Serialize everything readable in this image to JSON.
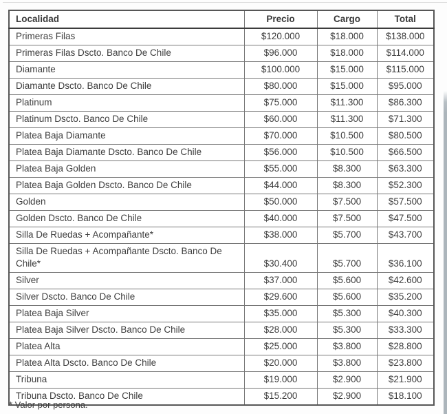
{
  "table": {
    "headers": [
      "Localidad",
      "Precio",
      "Cargo",
      "Total"
    ],
    "rows": [
      {
        "localidad": "Primeras Filas",
        "precio": "$120.000",
        "cargo": "$18.000",
        "total": "$138.000"
      },
      {
        "localidad": "Primeras Filas Dscto. Banco De Chile",
        "precio": "$96.000",
        "cargo": "$18.000",
        "total": "$114.000"
      },
      {
        "localidad": "Diamante",
        "precio": "$100.000",
        "cargo": "$15.000",
        "total": "$115.000"
      },
      {
        "localidad": "Diamante Dscto. Banco De Chile",
        "precio": "$80.000",
        "cargo": "$15.000",
        "total": "$95.000"
      },
      {
        "localidad": "Platinum",
        "precio": "$75.000",
        "cargo": "$11.300",
        "total": "$86.300"
      },
      {
        "localidad": "Platinum Dscto. Banco De Chile",
        "precio": "$60.000",
        "cargo": "$11.300",
        "total": "$71.300"
      },
      {
        "localidad": "Platea Baja Diamante",
        "precio": "$70.000",
        "cargo": "$10.500",
        "total": "$80.500"
      },
      {
        "localidad": "Platea Baja Diamante Dscto. Banco De Chile",
        "precio": "$56.000",
        "cargo": "$10.500",
        "total": "$66.500"
      },
      {
        "localidad": "Platea Baja Golden",
        "precio": "$55.000",
        "cargo": "$8.300",
        "total": "$63.300"
      },
      {
        "localidad": "Platea Baja Golden Dscto. Banco De Chile",
        "precio": "$44.000",
        "cargo": "$8.300",
        "total": "$52.300"
      },
      {
        "localidad": "Golden",
        "precio": "$50.000",
        "cargo": "$7.500",
        "total": "$57.500"
      },
      {
        "localidad": "Golden Dscto. Banco De Chile",
        "precio": "$40.000",
        "cargo": "$7.500",
        "total": "$47.500"
      },
      {
        "localidad": "Silla De Ruedas + Acompañante*",
        "precio": "$38.000",
        "cargo": "$5.700",
        "total": "$43.700"
      },
      {
        "localidad": "Silla De Ruedas + Acompañante Dscto. Banco De Chile*",
        "precio": "$30.400",
        "cargo": "$5.700",
        "total": "$36.100"
      },
      {
        "localidad": "Silver",
        "precio": "$37.000",
        "cargo": "$5.600",
        "total": "$42.600"
      },
      {
        "localidad": "Silver Dscto. Banco De Chile",
        "precio": "$29.600",
        "cargo": "$5.600",
        "total": "$35.200"
      },
      {
        "localidad": "Platea Baja Silver",
        "precio": "$35.000",
        "cargo": "$5.300",
        "total": "$40.300"
      },
      {
        "localidad": "Platea Baja Silver Dscto. Banco De Chile",
        "precio": "$28.000",
        "cargo": "$5.300",
        "total": "$33.300"
      },
      {
        "localidad": "Platea Alta",
        "precio": "$25.000",
        "cargo": "$3.800",
        "total": "$28.800"
      },
      {
        "localidad": "Platea Alta Dscto. Banco De Chile",
        "precio": "$20.000",
        "cargo": "$3.800",
        "total": "$23.800"
      },
      {
        "localidad": "Tribuna",
        "precio": "$19.000",
        "cargo": "$2.900",
        "total": "$21.900"
      },
      {
        "localidad": "Tribuna Dscto. Banco De Chile",
        "precio": "$15.200",
        "cargo": "$2.900",
        "total": "$18.100"
      }
    ]
  },
  "footnote": "* Valor por persona.",
  "colors": {
    "border_outer": "#565656",
    "border_inner": "#767676",
    "text": "#3d3d3d",
    "scroll_strip": "#acb5bb",
    "top_hairline": "#dcdcdc",
    "cell_background": "#ffffff"
  }
}
